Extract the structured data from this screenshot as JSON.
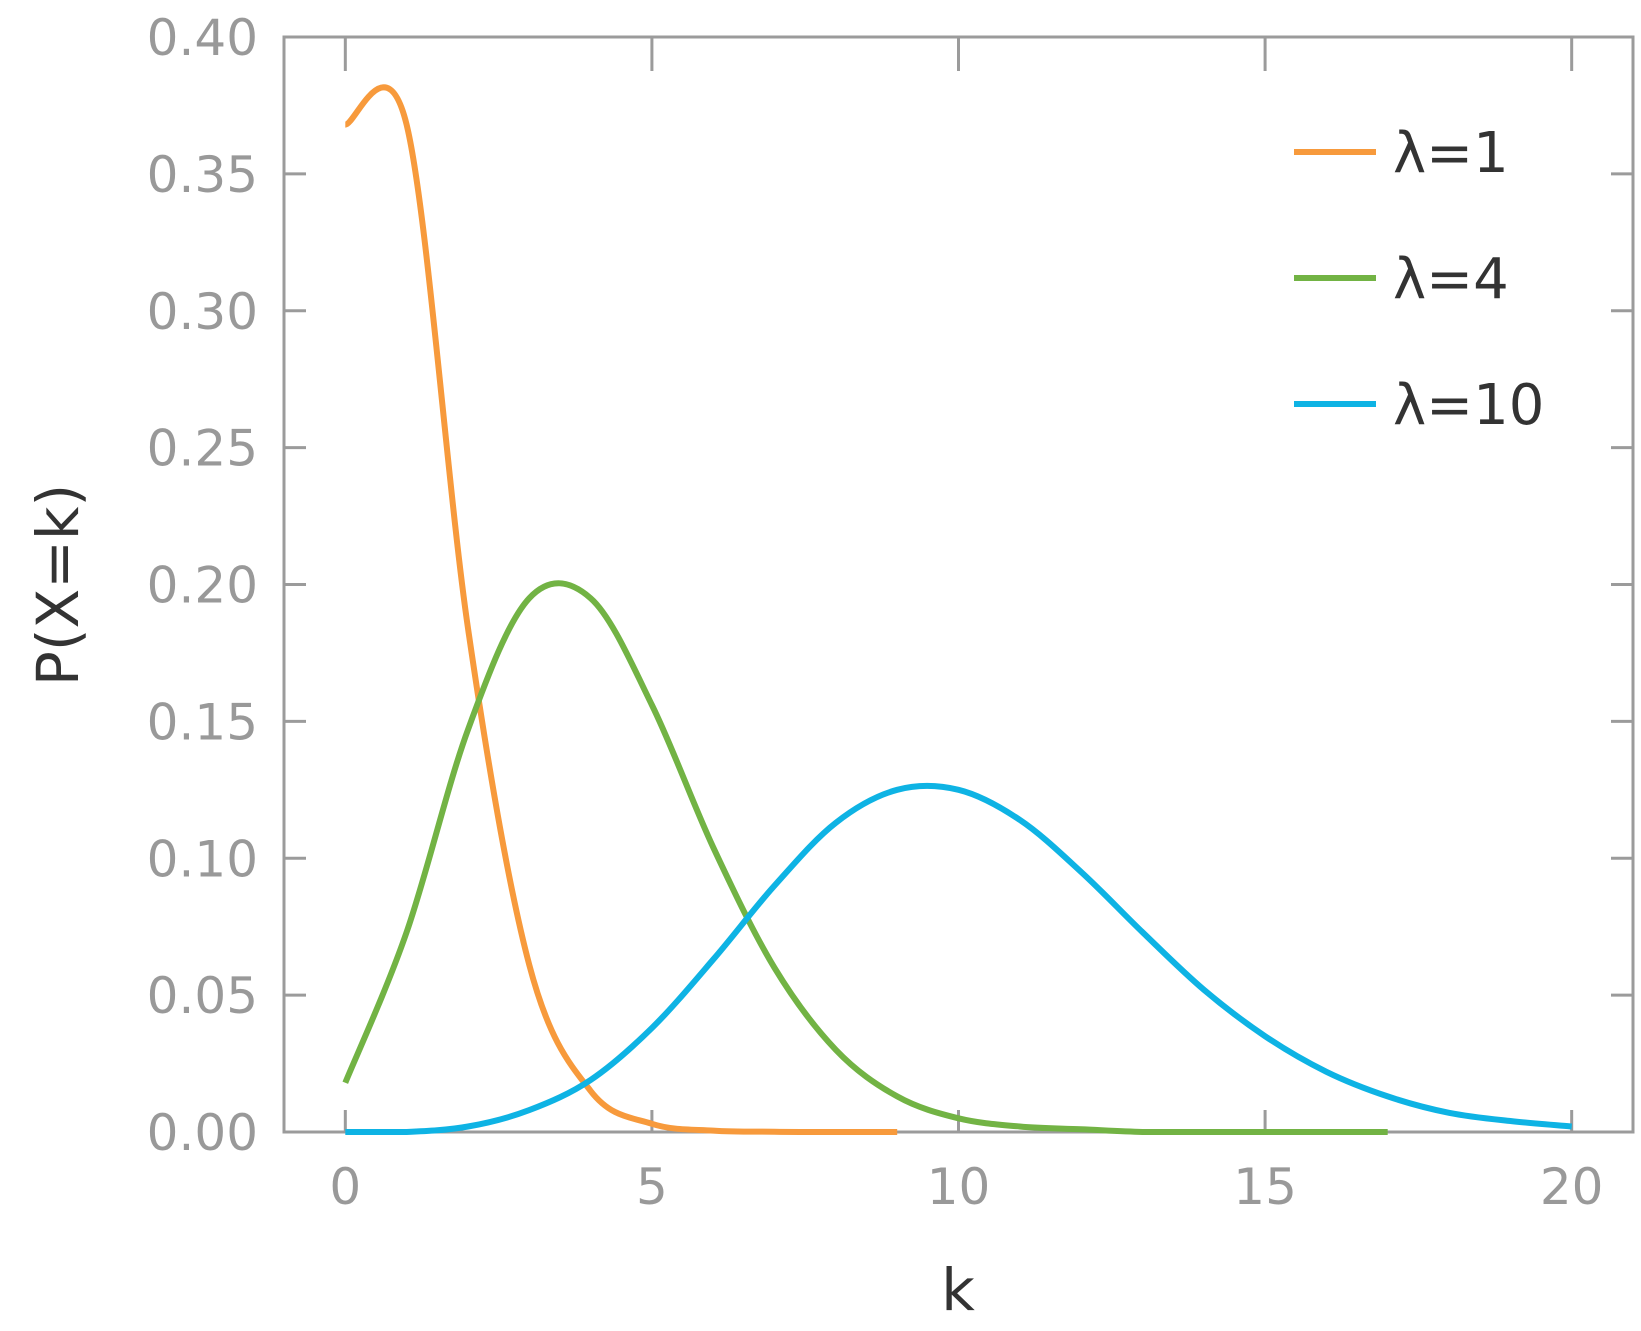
{
  "chart_data": {
    "type": "line",
    "title": "",
    "xlabel": "k",
    "ylabel": "P(X=k)",
    "xlim": [
      -1,
      21
    ],
    "ylim": [
      0,
      0.4
    ],
    "xticks": [
      0,
      5,
      10,
      15,
      20
    ],
    "xtick_labels": [
      "0",
      "5",
      "10",
      "15",
      "20"
    ],
    "yticks": [
      0,
      0.05,
      0.1,
      0.15,
      0.2,
      0.25,
      0.3,
      0.35,
      0.4
    ],
    "ytick_labels": [
      "0.00",
      "0.05",
      "0.10",
      "0.15",
      "0.20",
      "0.25",
      "0.30",
      "0.35",
      "0.40"
    ],
    "grid": false,
    "legend_position": "top-right",
    "series": [
      {
        "name": "λ=1",
        "color": "#F79A3C",
        "x": [
          0,
          1,
          2,
          3,
          4,
          5,
          6,
          7,
          8,
          9
        ],
        "y": [
          0.368,
          0.368,
          0.184,
          0.061,
          0.015,
          0.003,
          0.0005,
          0.0001,
          0.0,
          0.0
        ]
      },
      {
        "name": "λ=4",
        "color": "#72B344",
        "x": [
          0,
          1,
          2,
          3,
          4,
          5,
          6,
          7,
          8,
          9,
          10,
          11,
          12,
          13,
          14,
          15,
          16,
          17
        ],
        "y": [
          0.018,
          0.073,
          0.147,
          0.195,
          0.195,
          0.156,
          0.104,
          0.06,
          0.03,
          0.013,
          0.005,
          0.002,
          0.001,
          0.0,
          0.0,
          0.0,
          0.0,
          0.0
        ]
      },
      {
        "name": "λ=10",
        "color": "#0EB3E4",
        "x": [
          0,
          1,
          2,
          3,
          4,
          5,
          6,
          7,
          8,
          9,
          10,
          11,
          12,
          13,
          14,
          15,
          16,
          17,
          18,
          19,
          20
        ],
        "y": [
          0.0,
          0.0,
          0.002,
          0.008,
          0.019,
          0.038,
          0.063,
          0.09,
          0.113,
          0.125,
          0.125,
          0.114,
          0.095,
          0.073,
          0.052,
          0.035,
          0.022,
          0.013,
          0.007,
          0.004,
          0.002
        ]
      }
    ]
  }
}
